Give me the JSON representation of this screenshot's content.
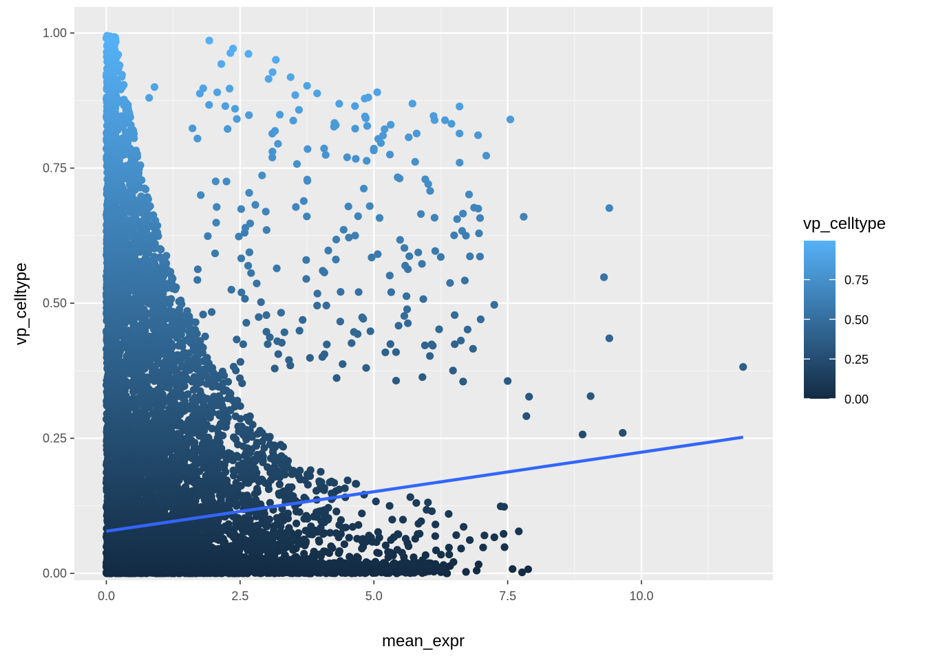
{
  "chart_data": {
    "type": "scatter",
    "title": "",
    "xlabel": "mean_expr",
    "ylabel": "vp_celltype",
    "xlim": [
      -0.6,
      12.4
    ],
    "ylim": [
      -0.05,
      1.0
    ],
    "x_ticks": [
      0.0,
      2.5,
      5.0,
      7.5,
      10.0
    ],
    "x_tick_labels": [
      "0.0",
      "2.5",
      "5.0",
      "7.5",
      "10.0"
    ],
    "y_ticks": [
      0.0,
      0.25,
      0.5,
      0.75,
      1.0
    ],
    "y_tick_labels": [
      "0.00",
      "0.25",
      "0.50",
      "0.75",
      "1.00"
    ],
    "grid": true,
    "background": "#ebebeb",
    "color_scale": {
      "low": "#132b43",
      "high": "#56b1f7",
      "legend_title": "vp_celltype",
      "breaks": [
        0.0,
        0.25,
        0.5,
        0.75
      ],
      "break_labels": [
        "0.00",
        "0.25",
        "0.50",
        "0.75"
      ],
      "placement": "right"
    },
    "trend_line": {
      "color": "#3366ff",
      "x": [
        0.0,
        11.9
      ],
      "y": [
        0.078,
        0.252
      ]
    },
    "outlier_points": [
      {
        "x": 11.9,
        "y": 0.382
      },
      {
        "x": 9.4,
        "y": 0.676
      },
      {
        "x": 9.3,
        "y": 0.548
      },
      {
        "x": 9.4,
        "y": 0.435
      },
      {
        "x": 9.65,
        "y": 0.26
      },
      {
        "x": 8.9,
        "y": 0.257
      },
      {
        "x": 9.05,
        "y": 0.328
      },
      {
        "x": 7.55,
        "y": 0.84
      },
      {
        "x": 6.6,
        "y": 0.864
      },
      {
        "x": 6.45,
        "y": 0.832
      },
      {
        "x": 6.6,
        "y": 0.814
      },
      {
        "x": 7.1,
        "y": 0.773
      },
      {
        "x": 4.65,
        "y": 0.823
      },
      {
        "x": 5.2,
        "y": 0.822
      },
      {
        "x": 5.0,
        "y": 0.786
      },
      {
        "x": 5.3,
        "y": 0.775
      },
      {
        "x": 4.5,
        "y": 0.77
      },
      {
        "x": 0.9,
        "y": 0.9
      },
      {
        "x": 0.8,
        "y": 0.88
      },
      {
        "x": 7.8,
        "y": 0.66
      },
      {
        "x": 6.95,
        "y": 0.675
      },
      {
        "x": 7.25,
        "y": 0.497
      },
      {
        "x": 6.7,
        "y": 0.542
      },
      {
        "x": 7.5,
        "y": 0.356
      },
      {
        "x": 7.9,
        "y": 0.327
      },
      {
        "x": 7.85,
        "y": 0.291
      }
    ],
    "dense_cloud_note": "thousands of points concentrated near mean_expr 0-6, vp_celltype 0-0.6"
  }
}
